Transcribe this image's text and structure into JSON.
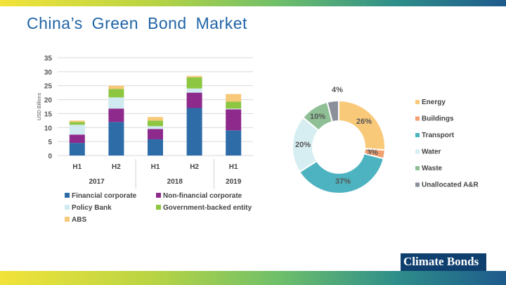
{
  "title": "China’s  Green  Bond  Market",
  "logo": {
    "text": "Climate Bonds"
  },
  "chart_data": [
    {
      "type": "bar",
      "stacked": true,
      "ylabel": "USD Billions",
      "ylim": [
        0,
        35
      ],
      "yticks": [
        0,
        5,
        10,
        15,
        20,
        25,
        30,
        35
      ],
      "grid": true,
      "categories": [
        "H1",
        "H2",
        "H1",
        "H2",
        "H1"
      ],
      "groups": [
        {
          "label": "2017",
          "span": [
            0,
            1
          ]
        },
        {
          "label": "2018",
          "span": [
            2,
            3
          ]
        },
        {
          "label": "2019",
          "span": [
            4,
            4
          ]
        }
      ],
      "series": [
        {
          "name": "Financial corporate",
          "color": "#2e6ca8",
          "values": [
            4.5,
            12.0,
            5.8,
            17.0,
            9.0
          ]
        },
        {
          "name": "Non-financial corporate",
          "color": "#8e2a8c",
          "values": [
            3.0,
            4.8,
            3.7,
            5.5,
            7.5
          ]
        },
        {
          "name": "Policy Bank",
          "color": "#cfeaf0",
          "values": [
            3.5,
            4.0,
            1.0,
            1.5,
            0.3
          ]
        },
        {
          "name": "Government-backed entity",
          "color": "#8dc641",
          "values": [
            1.0,
            3.0,
            2.0,
            4.0,
            2.5
          ]
        },
        {
          "name": "ABS",
          "color": "#f9c97a",
          "values": [
            0.5,
            1.2,
            1.3,
            0.5,
            2.7
          ]
        }
      ],
      "legend": "bottom"
    },
    {
      "type": "pie",
      "donut": true,
      "slices": [
        {
          "name": "Energy",
          "value": 26,
          "label": "26%",
          "color": "#f9c97a"
        },
        {
          "name": "Buildings",
          "value": 3,
          "label": "3%",
          "color": "#f2a06f"
        },
        {
          "name": "Transport",
          "value": 37,
          "label": "37%",
          "color": "#4db3c0"
        },
        {
          "name": "Water",
          "value": 20,
          "label": "20%",
          "color": "#d6eef2"
        },
        {
          "name": "Waste",
          "value": 10,
          "label": "10%",
          "color": "#8fbf95"
        },
        {
          "name": "Unallocated A&R",
          "value": 4,
          "label": "4%",
          "color": "#8a8f99"
        }
      ],
      "legend": "right"
    }
  ]
}
